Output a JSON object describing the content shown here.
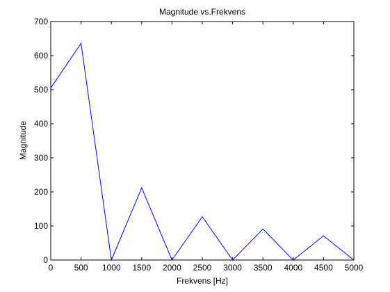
{
  "chart_data": {
    "type": "line",
    "title": "Magnitude vs.Frekvens",
    "xlabel": "Frekvens [Hz]",
    "ylabel": "Magnitude",
    "xlim": [
      0,
      5000
    ],
    "ylim": [
      0,
      700
    ],
    "xticks": [
      0,
      500,
      1000,
      1500,
      2000,
      2500,
      3000,
      3500,
      4000,
      4500,
      5000
    ],
    "yticks": [
      0,
      100,
      200,
      300,
      400,
      500,
      600,
      700
    ],
    "grid": false,
    "series": [
      {
        "color": "#0000ff",
        "x": [
          0,
          500,
          1000,
          1500,
          2000,
          2500,
          3000,
          3500,
          4000,
          4500,
          5000
        ],
        "y": [
          505,
          636,
          0,
          212,
          0,
          127,
          0,
          91,
          0,
          71,
          0
        ]
      }
    ]
  }
}
